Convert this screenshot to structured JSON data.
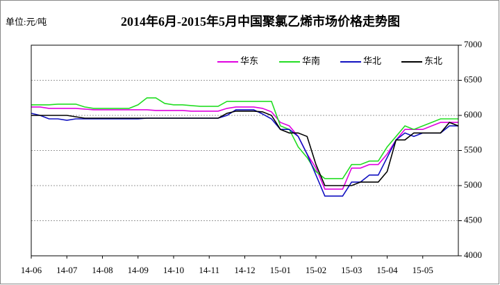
{
  "chart_data": {
    "type": "line",
    "title": "2014年6月-2015年5月中国聚氯乙烯市场价格走势图",
    "unit_label": "单位:元/吨",
    "categories": [
      "14-06",
      null,
      null,
      null,
      "14-07",
      null,
      null,
      null,
      "14-08",
      null,
      null,
      null,
      "14-09",
      null,
      null,
      null,
      "14-10",
      null,
      null,
      null,
      "14-11",
      null,
      null,
      null,
      "14-12",
      null,
      null,
      null,
      "15-01",
      null,
      null,
      null,
      "15-02",
      null,
      null,
      null,
      "15-03",
      null,
      null,
      null,
      "15-04",
      null,
      null,
      null,
      "15-05",
      null,
      null,
      null,
      null
    ],
    "series": [
      {
        "name": "华东",
        "color": "#e000e0",
        "values": [
          6120,
          6120,
          6100,
          6100,
          6100,
          6100,
          6090,
          6080,
          6080,
          6080,
          6080,
          6080,
          6080,
          6080,
          6070,
          6070,
          6070,
          6070,
          6060,
          6060,
          6060,
          6060,
          6100,
          6120,
          6120,
          6120,
          6100,
          6050,
          5900,
          5850,
          5700,
          5450,
          5250,
          4950,
          4950,
          4950,
          5250,
          5250,
          5300,
          5300,
          5450,
          5650,
          5800,
          5800,
          5800,
          5850,
          5900,
          5900,
          5900
        ]
      },
      {
        "name": "华南",
        "color": "#22dd22",
        "values": [
          6150,
          6150,
          6150,
          6160,
          6160,
          6160,
          6120,
          6100,
          6100,
          6100,
          6100,
          6100,
          6150,
          6250,
          6250,
          6170,
          6150,
          6150,
          6140,
          6130,
          6130,
          6130,
          6200,
          6200,
          6200,
          6200,
          6200,
          6200,
          5850,
          5800,
          5550,
          5400,
          5200,
          5100,
          5100,
          5100,
          5300,
          5300,
          5350,
          5350,
          5550,
          5700,
          5850,
          5800,
          5850,
          5900,
          5950,
          5950,
          5950
        ]
      },
      {
        "name": "华北",
        "color": "#1010c0",
        "values": [
          6030,
          6000,
          5950,
          5950,
          5930,
          5950,
          5950,
          5950,
          5950,
          5950,
          5950,
          5950,
          5950,
          5960,
          5960,
          5960,
          5960,
          5960,
          5960,
          5960,
          5960,
          5960,
          6000,
          6080,
          6080,
          6080,
          6020,
          5950,
          5800,
          5800,
          5700,
          5450,
          5150,
          4850,
          4850,
          4850,
          5050,
          5050,
          5150,
          5150,
          5400,
          5650,
          5750,
          5700,
          5750,
          5750,
          5750,
          5850,
          5850
        ]
      },
      {
        "name": "东北",
        "color": "#000000",
        "values": [
          6000,
          6000,
          6000,
          6000,
          6000,
          5980,
          5960,
          5960,
          5960,
          5960,
          5960,
          5960,
          5960,
          5960,
          5960,
          5960,
          5960,
          5960,
          5960,
          5960,
          5960,
          5960,
          6030,
          6060,
          6060,
          6060,
          6050,
          6000,
          5800,
          5750,
          5750,
          5700,
          5300,
          5000,
          5000,
          5000,
          5000,
          5050,
          5050,
          5050,
          5200,
          5650,
          5650,
          5750,
          5750,
          5750,
          5750,
          5900,
          5850
        ]
      }
    ],
    "ylim": [
      4000,
      7000
    ],
    "yticks": [
      4000,
      4500,
      5000,
      5500,
      6000,
      6500,
      7000
    ],
    "grid": true
  }
}
